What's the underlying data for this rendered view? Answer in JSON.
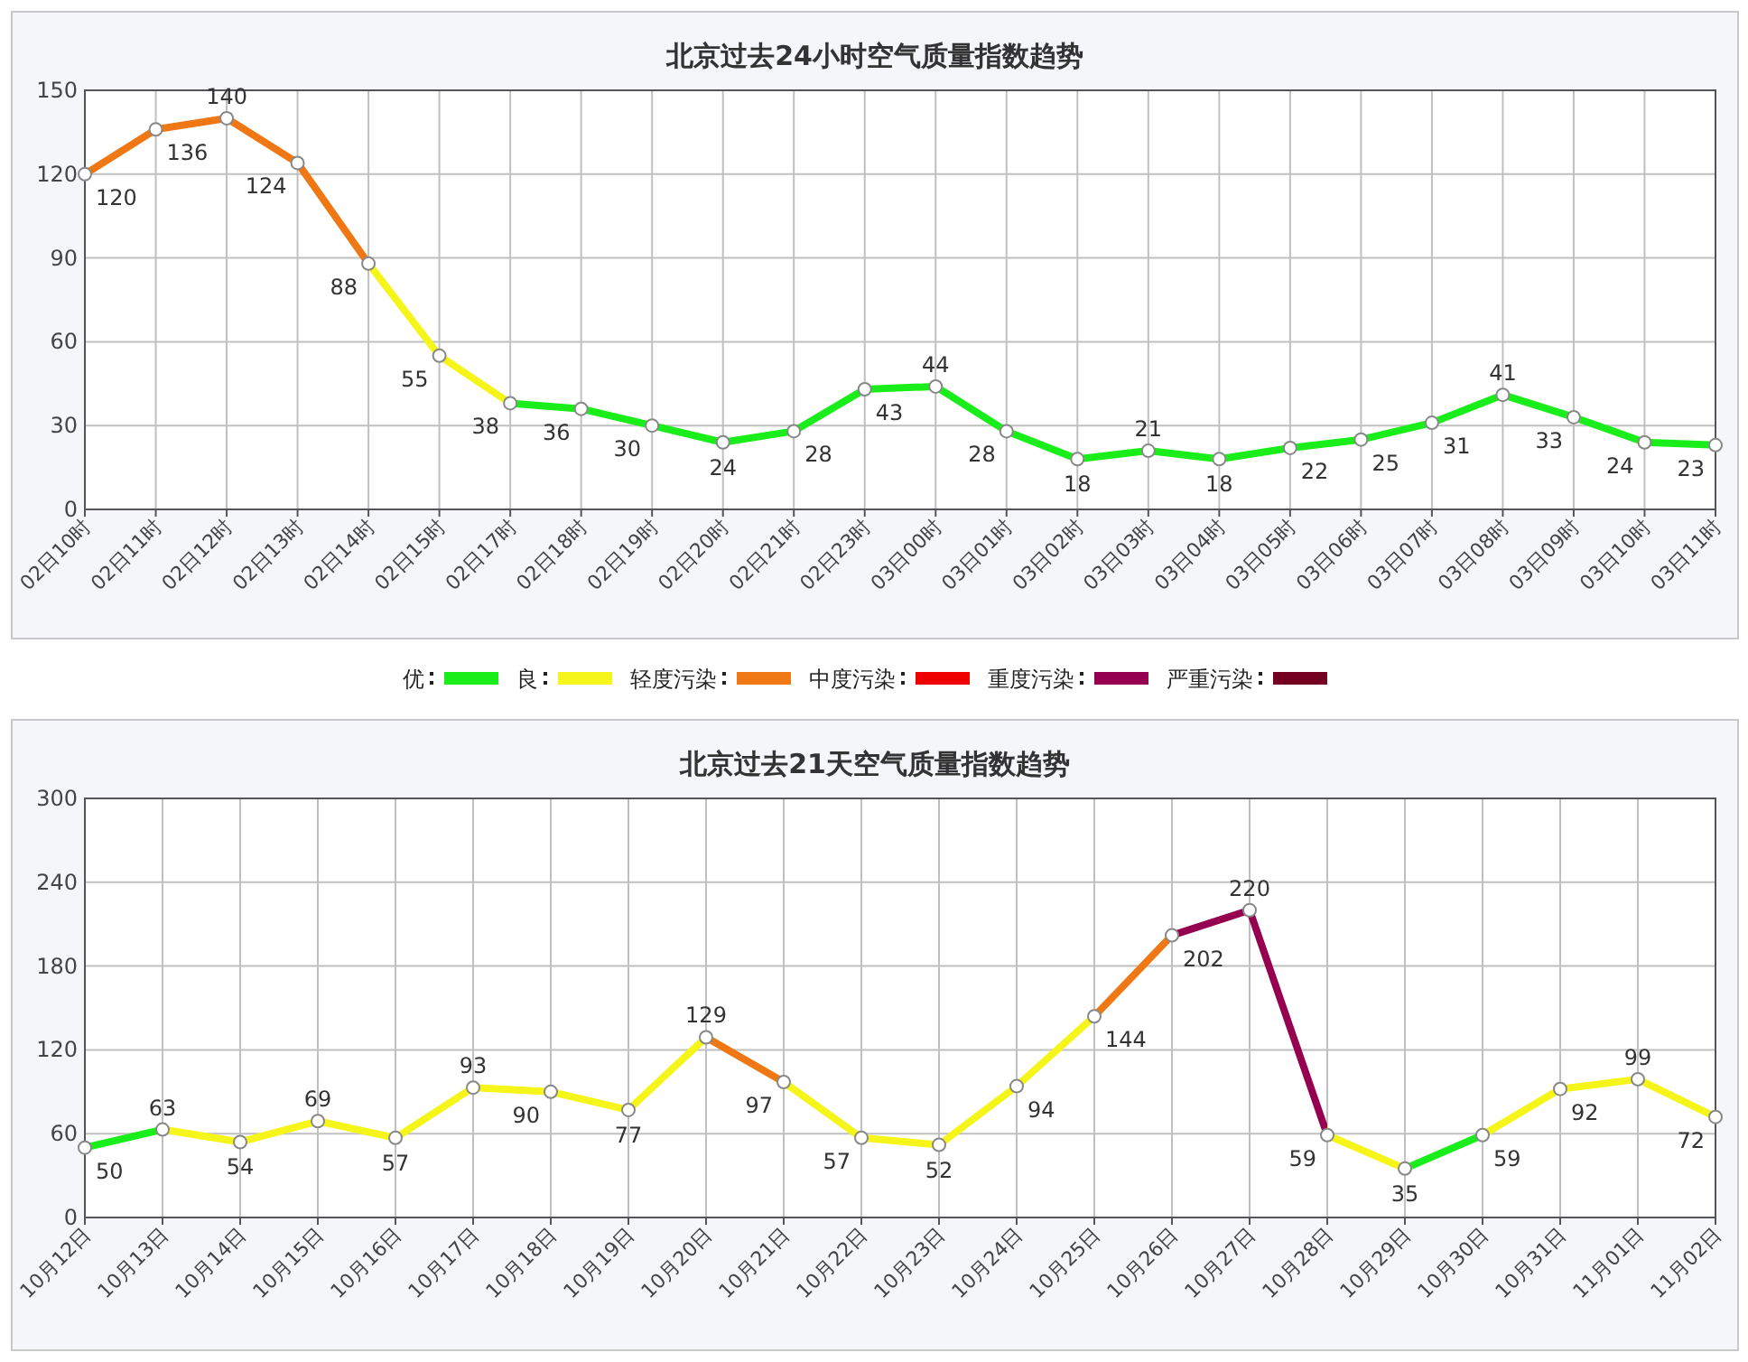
{
  "chart_data": [
    {
      "type": "line",
      "title": "北京过去24小时空气质量指数趋势",
      "categories": [
        "02日10时",
        "02日11时",
        "02日12时",
        "02日13时",
        "02日14时",
        "02日15时",
        "02日17时",
        "02日18时",
        "02日19时",
        "02日20时",
        "02日21时",
        "02日23时",
        "03日00时",
        "03日01时",
        "03日02时",
        "03日03时",
        "03日04时",
        "03日05时",
        "03日06时",
        "03日07时",
        "03日08时",
        "03日09时",
        "03日10时",
        "03日11时"
      ],
      "values": [
        120,
        136,
        140,
        124,
        88,
        55,
        38,
        36,
        30,
        24,
        28,
        43,
        44,
        28,
        18,
        21,
        18,
        22,
        25,
        31,
        41,
        33,
        24,
        23
      ],
      "colors": [
        "#f07814",
        "#f07814",
        "#f07814",
        "#f07814",
        "#f5f51a",
        "#f5f51a",
        "#1aee1a",
        "#1aee1a",
        "#1aee1a",
        "#1aee1a",
        "#1aee1a",
        "#1aee1a",
        "#1aee1a",
        "#1aee1a",
        "#1aee1a",
        "#1aee1a",
        "#1aee1a",
        "#1aee1a",
        "#1aee1a",
        "#1aee1a",
        "#1aee1a",
        "#1aee1a",
        "#1aee1a",
        "#1aee1a"
      ],
      "ylim": [
        0,
        150
      ],
      "yticks": [
        0,
        30,
        60,
        90,
        120,
        150
      ],
      "grid": true,
      "marker": "circle",
      "data_labels": true
    },
    {
      "type": "other",
      "categories": [
        "优",
        "良",
        "轻度污染",
        "中度污染",
        "重度污染",
        "严重污染"
      ],
      "colors": [
        "#1aee1a",
        "#f5f51a",
        "#f07814",
        "#ee0000",
        "#960050",
        "#730020"
      ]
    },
    {
      "type": "line",
      "title": "北京过去21天空气质量指数趋势",
      "categories": [
        "10月12日",
        "10月13日",
        "10月14日",
        "10月15日",
        "10月16日",
        "10月17日",
        "10月18日",
        "10月19日",
        "10月20日",
        "10月21日",
        "10月22日",
        "10月23日",
        "10月24日",
        "10月25日",
        "10月26日",
        "10月27日",
        "10月28日",
        "10月29日",
        "10月30日",
        "10月31日",
        "11月01日",
        "11月02日"
      ],
      "values": [
        50,
        63,
        54,
        69,
        57,
        93,
        90,
        77,
        129,
        97,
        57,
        52,
        94,
        144,
        202,
        220,
        59,
        35,
        59,
        92,
        99,
        72
      ],
      "colors": [
        "#1aee1a",
        "#f5f51a",
        "#f5f51a",
        "#f5f51a",
        "#f5f51a",
        "#f5f51a",
        "#f5f51a",
        "#f5f51a",
        "#f07814",
        "#f5f51a",
        "#f5f51a",
        "#f5f51a",
        "#f5f51a",
        "#f07814",
        "#960050",
        "#960050",
        "#f5f51a",
        "#1aee1a",
        "#f5f51a",
        "#f5f51a",
        "#f5f51a",
        "#f5f51a"
      ],
      "ylim": [
        0,
        300
      ],
      "yticks": [
        0,
        60,
        120,
        180,
        240,
        300
      ],
      "grid": true,
      "marker": "circle",
      "data_labels": true
    }
  ]
}
